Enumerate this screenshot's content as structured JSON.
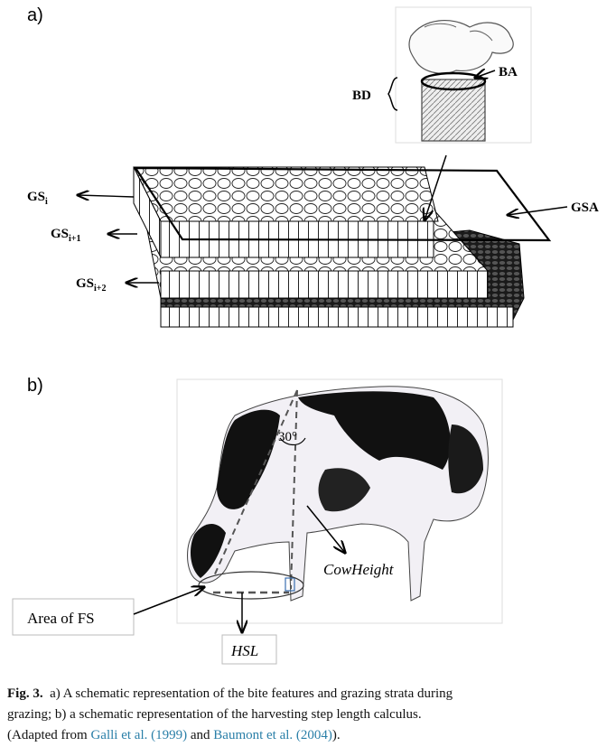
{
  "panel_a": {
    "label": "a)",
    "annotations": {
      "ba": "BA",
      "bd": "BD",
      "gsa": "GSA",
      "gs_i": {
        "base": "GS",
        "sub": "i"
      },
      "gs_i1": {
        "base": "GS",
        "sub": "i+1"
      },
      "gs_i2": {
        "base": "GS",
        "sub": "i+2"
      }
    }
  },
  "panel_b": {
    "label": "b)",
    "angle": "30°",
    "cow_height": "CowHeight",
    "area_fs": "Area of FS",
    "hsl": "HSL"
  },
  "caption": {
    "fig_label": "Fig. 3.",
    "line1_rest": "  a) A schematic representation of the bite features and grazing strata during",
    "line2": "grazing; b) a schematic representation of the harvesting step length calculus.",
    "line3_start": "(Adapted from ",
    "cite1": "Galli et al. (1999)",
    "line3_mid": " and ",
    "cite2": "Baumont et al. (2004)",
    "line3_end": ")."
  }
}
